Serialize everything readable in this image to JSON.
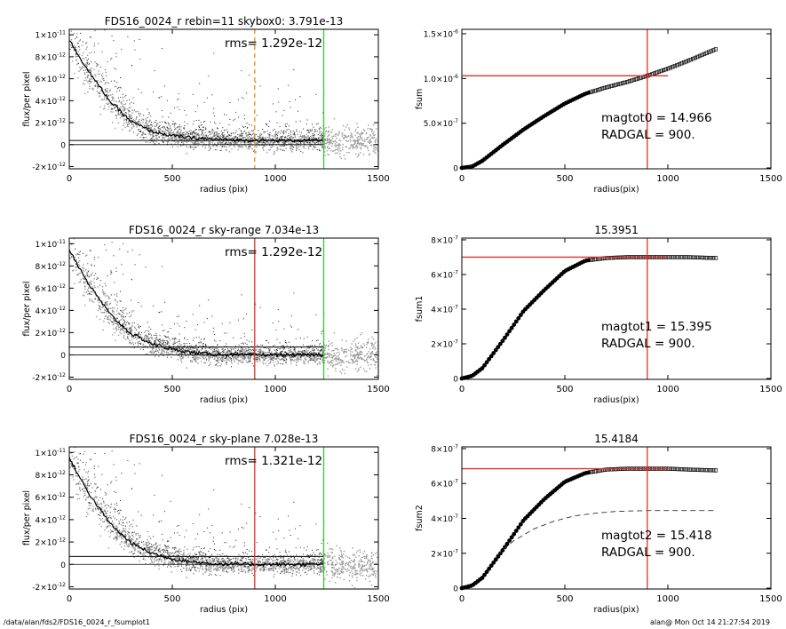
{
  "footer": {
    "left": "/data/alan/fds2/FDS16_0024_r_fsumplot1",
    "right": "alan@  Mon Oct 14 21:27:54 2019"
  },
  "colors": {
    "axis": "#000000",
    "scatter_dark": "#222222",
    "scatter_light": "#9a9a9a",
    "red_line": "#e0302a",
    "green_line": "#33cc33",
    "orange_dash": "#f08a24"
  },
  "chart_data": [
    {
      "type": "scatter",
      "title": "FDS16_0024_r rebin=11    skybox0:  3.791e-13",
      "annotation": "rms= 1.292e-12",
      "xlabel": "radius (pix)",
      "ylabel": "flux/per pixel",
      "xlim": [
        0,
        1500
      ],
      "ylim": [
        -2.2e-12,
        1.05e-11
      ],
      "xticks": [
        0,
        500,
        1000,
        1500
      ],
      "xtick_labels": [
        "0",
        "500",
        "1000",
        "1500"
      ],
      "yticks": [
        -2e-12,
        0,
        2e-12,
        4e-12,
        6e-12,
        8e-12,
        1e-11
      ],
      "ytick_labels": [
        [
          "-2",
          "×10",
          "-12"
        ],
        [
          "0",
          "",
          ""
        ],
        [
          "2",
          "×10",
          "-12"
        ],
        [
          "4",
          "×10",
          "-12"
        ],
        [
          "6",
          "×10",
          "-12"
        ],
        [
          "8",
          "×10",
          "-12"
        ],
        [
          "1",
          "×10",
          "-11"
        ]
      ],
      "profile": {
        "x": [
          0,
          50,
          100,
          200,
          300,
          400,
          500,
          600,
          700,
          800,
          900,
          1000,
          1100,
          1235
        ],
        "y": [
          9.5e-12,
          8e-12,
          6.5e-12,
          3.9e-12,
          2.1e-12,
          1.2e-12,
          8e-13,
          6e-13,
          5e-13,
          4.2e-13,
          3.9e-13,
          3.8e-13,
          3.8e-13,
          3.8e-13
        ]
      },
      "sky_level": 3.791e-13,
      "zero_line": 0,
      "vlines": [
        {
          "x": 900,
          "color": "orange",
          "style": "dashed"
        },
        {
          "x": 1235,
          "color": "green",
          "style": "solid"
        }
      ]
    },
    {
      "type": "line",
      "title": "",
      "xlabel": "radius(pix)",
      "ylabel": "fsum",
      "xlim": [
        0,
        1500
      ],
      "ylim": [
        -1e-08,
        1.55e-06
      ],
      "xticks": [
        0,
        500,
        1000,
        1500
      ],
      "xtick_labels": [
        "0",
        "500",
        "1000",
        "1500"
      ],
      "yticks": [
        0,
        5e-07,
        1e-06,
        1.5e-06
      ],
      "ytick_labels": [
        [
          "0",
          "",
          ""
        ],
        [
          "5.0",
          "×10",
          "-7"
        ],
        [
          "1.0",
          "×10",
          "-6"
        ],
        [
          "1.5",
          "×10",
          "-6"
        ]
      ],
      "curve": {
        "x": [
          0,
          50,
          100,
          200,
          300,
          400,
          500,
          600,
          700,
          800,
          900,
          1000,
          1100,
          1235
        ],
        "y": [
          0,
          1.5e-08,
          8e-08,
          2.6e-07,
          4.3e-07,
          5.8e-07,
          7.2e-07,
          8.3e-07,
          9e-07,
          9.6e-07,
          1.03e-06,
          1.11e-06,
          1.2e-06,
          1.33e-06
        ]
      },
      "hline": {
        "y": 1.03e-06,
        "x_from": 0,
        "x_to": 1000
      },
      "vline": {
        "x": 900
      },
      "annotations": [
        "magtot0 =  14.966",
        "RADGAL =    900."
      ]
    },
    {
      "type": "scatter",
      "title": "FDS16_0024_r sky-range  7.034e-13",
      "annotation": "rms= 1.292e-12",
      "xlabel": "radius (pix)",
      "ylabel": "flux/per pixel",
      "xlim": [
        0,
        1500
      ],
      "ylim": [
        -2.2e-12,
        1.05e-11
      ],
      "xticks": [
        0,
        500,
        1000,
        1500
      ],
      "xtick_labels": [
        "0",
        "500",
        "1000",
        "1500"
      ],
      "yticks": [
        -2e-12,
        0,
        2e-12,
        4e-12,
        6e-12,
        8e-12,
        1e-11
      ],
      "ytick_labels": [
        [
          "-2",
          "×10",
          "-12"
        ],
        [
          "0",
          "",
          ""
        ],
        [
          "2",
          "×10",
          "-12"
        ],
        [
          "4",
          "×10",
          "-12"
        ],
        [
          "6",
          "×10",
          "-12"
        ],
        [
          "8",
          "×10",
          "-12"
        ],
        [
          "1",
          "×10",
          "-11"
        ]
      ],
      "profile": {
        "x": [
          0,
          50,
          100,
          200,
          300,
          400,
          500,
          600,
          700,
          800,
          900,
          1000,
          1100,
          1235
        ],
        "y": [
          9.5e-12,
          7.8e-12,
          6.2e-12,
          3.6e-12,
          1.9e-12,
          1e-12,
          5e-13,
          2e-13,
          5e-14,
          0,
          0,
          0,
          0,
          0
        ]
      },
      "sky_level": 7.034e-13,
      "zero_line": 0,
      "vlines": [
        {
          "x": 900,
          "color": "red",
          "style": "solid"
        },
        {
          "x": 1235,
          "color": "green",
          "style": "solid"
        }
      ]
    },
    {
      "type": "line",
      "title": "15.3951",
      "xlabel": "radius(pix)",
      "ylabel": "fsum1",
      "xlim": [
        0,
        1500
      ],
      "ylim": [
        -5e-09,
        8.1e-07
      ],
      "xticks": [
        0,
        500,
        1000,
        1500
      ],
      "xtick_labels": [
        "0",
        "500",
        "1000",
        "1500"
      ],
      "yticks": [
        0,
        2e-07,
        4e-07,
        6e-07,
        8e-07
      ],
      "ytick_labels": [
        [
          "0",
          "",
          ""
        ],
        [
          "2",
          "×10",
          "-7"
        ],
        [
          "4",
          "×10",
          "-7"
        ],
        [
          "6",
          "×10",
          "-7"
        ],
        [
          "8",
          "×10",
          "-7"
        ]
      ],
      "curve": {
        "x": [
          0,
          50,
          100,
          200,
          300,
          400,
          500,
          600,
          700,
          800,
          900,
          1000,
          1100,
          1235
        ],
        "y": [
          0,
          1.5e-08,
          6e-08,
          2.2e-07,
          3.9e-07,
          5.1e-07,
          6.2e-07,
          6.8e-07,
          6.95e-07,
          7e-07,
          7e-07,
          7e-07,
          7e-07,
          6.95e-07
        ]
      },
      "hline": {
        "y": 7e-07,
        "x_from": 0,
        "x_to": 1000
      },
      "vline": {
        "x": 900
      },
      "annotations": [
        "magtot1 =  15.395",
        "RADGAL =    900."
      ]
    },
    {
      "type": "scatter",
      "title": "FDS16_0024_r sky-plane  7.028e-13",
      "annotation": "rms= 1.321e-12",
      "xlabel": "radius (pix)",
      "ylabel": "flux/per pixel",
      "xlim": [
        0,
        1500
      ],
      "ylim": [
        -2.2e-12,
        1.05e-11
      ],
      "xticks": [
        0,
        500,
        1000,
        1500
      ],
      "xtick_labels": [
        "0",
        "500",
        "1000",
        "1500"
      ],
      "yticks": [
        -2e-12,
        0,
        2e-12,
        4e-12,
        6e-12,
        8e-12,
        1e-11
      ],
      "ytick_labels": [
        [
          "-2",
          "×10",
          "-12"
        ],
        [
          "0",
          "",
          ""
        ],
        [
          "2",
          "×10",
          "-12"
        ],
        [
          "4",
          "×10",
          "-12"
        ],
        [
          "6",
          "×10",
          "-12"
        ],
        [
          "8",
          "×10",
          "-12"
        ],
        [
          "1",
          "×10",
          "-11"
        ]
      ],
      "profile": {
        "x": [
          0,
          50,
          100,
          200,
          300,
          400,
          500,
          600,
          700,
          800,
          900,
          1000,
          1100,
          1235
        ],
        "y": [
          9.5e-12,
          7.8e-12,
          6.2e-12,
          3.6e-12,
          1.9e-12,
          1e-12,
          5e-13,
          2e-13,
          5e-14,
          0,
          0,
          0,
          0,
          0
        ]
      },
      "sky_level": 7.028e-13,
      "zero_line": 0,
      "vlines": [
        {
          "x": 900,
          "color": "red",
          "style": "solid"
        },
        {
          "x": 1235,
          "color": "green",
          "style": "solid"
        }
      ]
    },
    {
      "type": "line",
      "title": "15.4184",
      "xlabel": "radius(pix)",
      "ylabel": "fsum2",
      "xlim": [
        0,
        1500
      ],
      "ylim": [
        -5e-09,
        8.1e-07
      ],
      "xticks": [
        0,
        500,
        1000,
        1500
      ],
      "xtick_labels": [
        "0",
        "500",
        "1000",
        "1500"
      ],
      "yticks": [
        0,
        2e-07,
        4e-07,
        6e-07,
        8e-07
      ],
      "ytick_labels": [
        [
          "0",
          "",
          ""
        ],
        [
          "2",
          "×10",
          "-7"
        ],
        [
          "4",
          "×10",
          "-7"
        ],
        [
          "6",
          "×10",
          "-7"
        ],
        [
          "8",
          "×10",
          "-7"
        ]
      ],
      "curve": {
        "x": [
          0,
          50,
          100,
          200,
          300,
          400,
          500,
          600,
          700,
          800,
          900,
          1000,
          1100,
          1235
        ],
        "y": [
          0,
          1.5e-08,
          6e-08,
          2.2e-07,
          3.9e-07,
          5.1e-07,
          6.1e-07,
          6.6e-07,
          6.8e-07,
          6.85e-07,
          6.85e-07,
          6.85e-07,
          6.8e-07,
          6.75e-07
        ]
      },
      "dashed_curve": {
        "x": [
          170,
          250,
          350,
          450,
          550,
          650,
          750,
          900,
          1050,
          1235
        ],
        "y": [
          1.9e-07,
          2.7e-07,
          3.4e-07,
          3.85e-07,
          4.15e-07,
          4.3e-07,
          4.4e-07,
          4.45e-07,
          4.45e-07,
          4.45e-07
        ]
      },
      "hline": {
        "y": 6.85e-07,
        "x_from": 0,
        "x_to": 1000
      },
      "vline": {
        "x": 900
      },
      "annotations": [
        "magtot2 =  15.418",
        "RADGAL =    900."
      ]
    }
  ]
}
